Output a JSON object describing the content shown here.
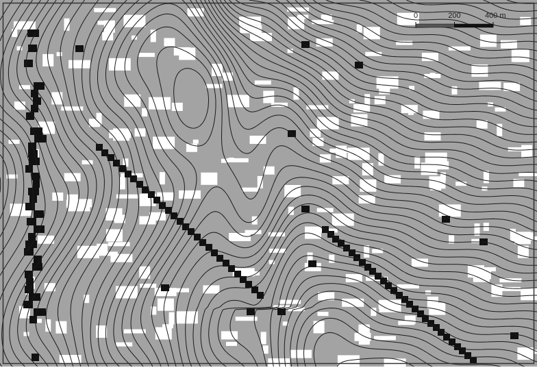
{
  "scale_bar": {
    "ticks": [
      0,
      200,
      {
        "value": 400,
        "label": "400 m"
      }
    ]
  }
}
